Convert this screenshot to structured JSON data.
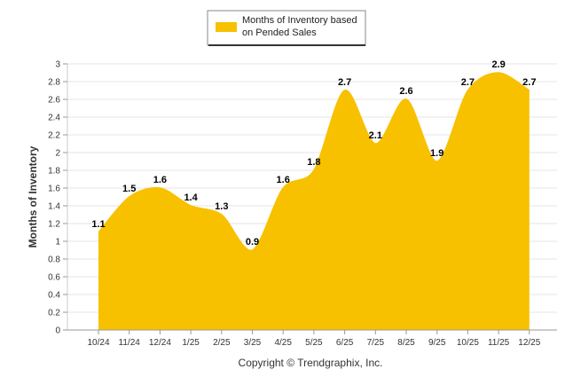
{
  "chart_data": {
    "type": "area",
    "title": "",
    "xlabel": "",
    "ylabel": "Months of Inventory",
    "categories": [
      "10/24",
      "11/24",
      "12/24",
      "1/25",
      "2/25",
      "3/25",
      "4/25",
      "5/25",
      "6/25",
      "7/25",
      "8/25",
      "9/25",
      "10/25",
      "11/25",
      "12/25"
    ],
    "series": [
      {
        "name": "Months of Inventory based on Pended Sales",
        "values": [
          1.1,
          1.5,
          1.6,
          1.4,
          1.3,
          0.9,
          1.6,
          1.8,
          2.7,
          2.1,
          2.6,
          1.9,
          2.7,
          2.9,
          2.7
        ],
        "color": "#F7C100"
      }
    ],
    "ylim": [
      0,
      3
    ],
    "yticks": [
      "0",
      "0.2",
      "0.4",
      "0.6",
      "0.8",
      "1",
      "1.2",
      "1.4",
      "1.6",
      "1.8",
      "2",
      "2.2",
      "2.4",
      "2.6",
      "2.8",
      "3"
    ],
    "ytick_values": [
      0,
      0.2,
      0.4,
      0.6,
      0.8,
      1,
      1.2,
      1.4,
      1.6,
      1.8,
      2,
      2.2,
      2.4,
      2.6,
      2.8,
      3
    ],
    "grid": true,
    "legend_position": "top-center",
    "footer": "Copyright © Trendgraphix, Inc."
  }
}
